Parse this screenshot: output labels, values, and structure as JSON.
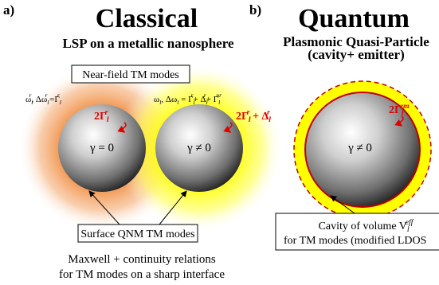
{
  "panel_a": {
    "label": "a)",
    "title": "Classical",
    "subtitle": "LSP on a metallic nanosphere"
  },
  "panel_b": {
    "label": "b)",
    "title": "Quantum",
    "subtitle": [
      "Plasmonic Quasi-Particle",
      "(cavity+ emitter)"
    ]
  },
  "near_field_box": "Near-field TM modes",
  "eq_left": [
    "ω",
    "l",
    "r",
    ", Δω",
    "l",
    "r",
    " =Γ",
    "l",
    "r"
  ],
  "eq_right": [
    "ω",
    "l",
    ", Δω",
    "l",
    " = Γ",
    "l",
    "r",
    "+ Δ",
    "l",
    "r",
    "+ Γ",
    "l",
    "nr"
  ],
  "rate_left": [
    "2Γ",
    "l",
    "r"
  ],
  "rate_middle": [
    "2Γ",
    "l",
    "r",
    " + Δ",
    "l",
    "r"
  ],
  "rate_right": [
    "2Γ",
    "l",
    "em"
  ],
  "sphere_left": "γ = 0",
  "sphere_middle": "γ ≠ 0",
  "sphere_right": "γ ≠ 0",
  "surface_box": "Surface QNM TM modes",
  "caption_a": [
    "Maxwell + continuity relations",
    "for TM modes on a sharp interface"
  ],
  "cavity_box": {
    "line1": [
      "Cavity of volume V",
      "l",
      "eff"
    ],
    "line2": "for TM modes (modified LDOS"
  }
}
